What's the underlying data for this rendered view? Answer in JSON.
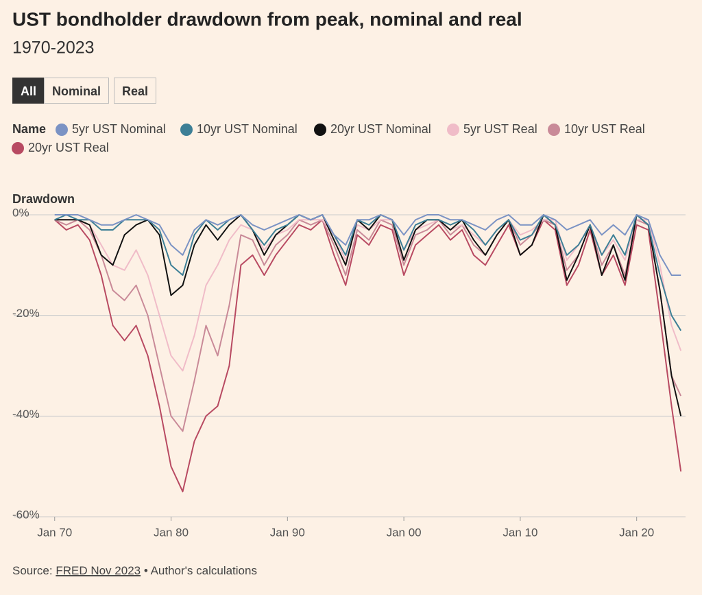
{
  "chart_data": {
    "type": "line",
    "title": "UST bondholder drawdown from peak, nominal and real",
    "subtitle": "1970-2023",
    "buttons": [
      "All",
      "Nominal",
      "Real"
    ],
    "legend_title": "Name",
    "y_label": "Drawdown",
    "source": [
      "Source:",
      "FRED Nov 2023",
      "• Author's calculations"
    ],
    "x": [
      1970,
      1971,
      1972,
      1973,
      1974,
      1975,
      1976,
      1977,
      1978,
      1979,
      1980,
      1981,
      1982,
      1983,
      1984,
      1985,
      1986,
      1987,
      1988,
      1989,
      1990,
      1991,
      1992,
      1993,
      1994,
      1995,
      1996,
      1997,
      1998,
      1999,
      2000,
      2001,
      2002,
      2003,
      2004,
      2005,
      2006,
      2007,
      2008,
      2009,
      2010,
      2011,
      2012,
      2013,
      2014,
      2015,
      2016,
      2017,
      2018,
      2019,
      2020,
      2021,
      2022,
      2023,
      2023.8
    ],
    "xlim": [
      1967.6,
      2024.2
    ],
    "xticks": [
      {
        "value": 1970,
        "label": "Jan 70"
      },
      {
        "value": 1980,
        "label": "Jan 80"
      },
      {
        "value": 1990,
        "label": "Jan 90"
      },
      {
        "value": 2000,
        "label": "Jan 00"
      },
      {
        "value": 2010,
        "label": "Jan 10"
      },
      {
        "value": 2020,
        "label": "Jan 20"
      }
    ],
    "ylim": [
      -60,
      0
    ],
    "yticks": [
      {
        "value": 0,
        "label": "0%"
      },
      {
        "value": -20,
        "label": "-20%"
      },
      {
        "value": -40,
        "label": "-40%"
      },
      {
        "value": -60,
        "label": "-60%"
      }
    ],
    "series": [
      {
        "name": "5yr UST Nominal",
        "color": "#7b93c4",
        "values": [
          0,
          0,
          0,
          -1,
          -2,
          -2,
          -1,
          0,
          -1,
          -2,
          -6,
          -8,
          -3,
          -1,
          -2,
          -1,
          0,
          -2,
          -3,
          -2,
          -1,
          0,
          -1,
          0,
          -4,
          -6,
          -1,
          -1,
          0,
          -1,
          -4,
          -1,
          0,
          0,
          -1,
          -1,
          -2,
          -3,
          -1,
          0,
          -2,
          -2,
          0,
          -1,
          -3,
          -2,
          -1,
          -4,
          -2,
          -4,
          0,
          -1,
          -8,
          -12,
          -12
        ]
      },
      {
        "name": "10yr UST Nominal",
        "color": "#3d7f96",
        "values": [
          -1,
          0,
          -1,
          -1,
          -3,
          -3,
          -1,
          -1,
          -1,
          -3,
          -10,
          -12,
          -4,
          -1,
          -3,
          -1,
          0,
          -3,
          -6,
          -3,
          -2,
          0,
          -1,
          0,
          -4,
          -8,
          -1,
          -2,
          0,
          -1,
          -7,
          -2,
          -1,
          -1,
          -2,
          -1,
          -3,
          -6,
          -3,
          -1,
          -5,
          -4,
          0,
          -2,
          -8,
          -6,
          -2,
          -8,
          -4,
          -8,
          0,
          -2,
          -12,
          -20,
          -23
        ]
      },
      {
        "name": "20yr UST Nominal",
        "color": "#111111",
        "values": [
          -1,
          -1,
          -1,
          -2,
          -8,
          -10,
          -4,
          -2,
          -1,
          -4,
          -16,
          -14,
          -6,
          -2,
          -5,
          -2,
          0,
          -3,
          -8,
          -4,
          -2,
          0,
          -1,
          0,
          -5,
          -10,
          -1,
          -3,
          0,
          -1,
          -9,
          -3,
          -1,
          -1,
          -3,
          -1,
          -5,
          -8,
          -4,
          -1,
          -8,
          -6,
          0,
          -2,
          -13,
          -8,
          -2,
          -12,
          -6,
          -13,
          0,
          -2,
          -15,
          -32,
          -40
        ]
      },
      {
        "name": "5yr UST Real",
        "color": "#f0bcc8",
        "values": [
          -1,
          -1,
          -1,
          -2,
          -6,
          -10,
          -11,
          -7,
          -12,
          -20,
          -28,
          -31,
          -24,
          -14,
          -10,
          -5,
          -2,
          -3,
          -7,
          -4,
          -3,
          -1,
          -1,
          -1,
          -4,
          -9,
          -2,
          -3,
          -1,
          -1,
          -7,
          -3,
          -2,
          -1,
          -3,
          -2,
          -4,
          -6,
          -3,
          -1,
          -4,
          -3,
          -1,
          -1,
          -9,
          -6,
          -2,
          -8,
          -5,
          -9,
          -1,
          -1,
          -10,
          -22,
          -27
        ]
      },
      {
        "name": "10yr UST Real",
        "color": "#c98a98",
        "values": [
          -1,
          -2,
          -1,
          -3,
          -8,
          -15,
          -17,
          -14,
          -20,
          -30,
          -40,
          -43,
          -33,
          -22,
          -28,
          -18,
          -4,
          -5,
          -10,
          -6,
          -4,
          -1,
          -2,
          -1,
          -6,
          -12,
          -3,
          -5,
          -1,
          -2,
          -10,
          -4,
          -3,
          -1,
          -4,
          -2,
          -6,
          -8,
          -4,
          -1,
          -6,
          -4,
          -1,
          -2,
          -11,
          -8,
          -2,
          -10,
          -6,
          -12,
          -1,
          -2,
          -15,
          -32,
          -36
        ]
      },
      {
        "name": "20yr UST Real",
        "color": "#b84a62",
        "values": [
          -1,
          -3,
          -2,
          -5,
          -12,
          -22,
          -25,
          -22,
          -28,
          -38,
          -50,
          -55,
          -45,
          -40,
          -38,
          -30,
          -10,
          -8,
          -12,
          -8,
          -5,
          -2,
          -3,
          -1,
          -8,
          -14,
          -4,
          -6,
          -2,
          -3,
          -12,
          -6,
          -4,
          -2,
          -5,
          -3,
          -8,
          -10,
          -6,
          -2,
          -8,
          -6,
          -1,
          -3,
          -14,
          -10,
          -3,
          -12,
          -8,
          -14,
          -2,
          -3,
          -20,
          -38,
          -51
        ]
      }
    ]
  }
}
